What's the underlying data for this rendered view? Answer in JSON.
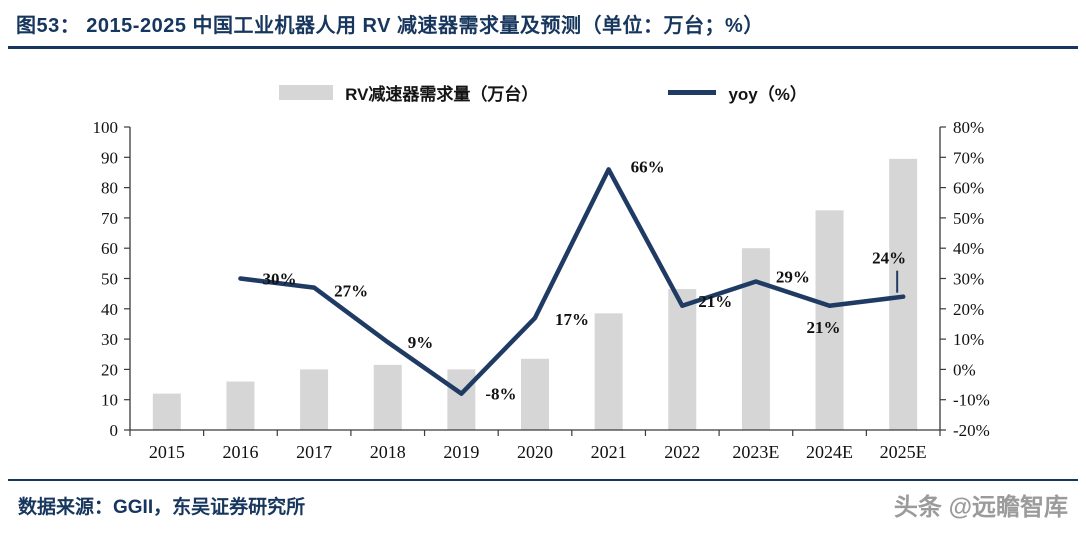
{
  "header": {
    "title": "图53：  2015-2025 中国工业机器人用 RV 减速器需求量及预测（单位：万台；%）"
  },
  "chart_data": {
    "type": "combo",
    "categories": [
      "2015",
      "2016",
      "2017",
      "2018",
      "2019",
      "2020",
      "2021",
      "2022",
      "2023E",
      "2024E",
      "2025E"
    ],
    "series": [
      {
        "name": "RV减速器需求量（万台）",
        "type": "bar",
        "axis": "left",
        "color": "#d6d6d6",
        "values": [
          12,
          16,
          20,
          21.5,
          20,
          23.5,
          38.5,
          46.5,
          60,
          72.5,
          89.5
        ]
      },
      {
        "name": "yoy（%）",
        "type": "line",
        "axis": "right",
        "color": "#1f3a63",
        "values": [
          null,
          30,
          27,
          9,
          -8,
          17,
          66,
          21,
          29,
          21,
          24
        ],
        "labels": [
          "",
          "30%",
          "27%",
          "9%",
          "-8%",
          "17%",
          "66%",
          "21%",
          "29%",
          "21%",
          "24%"
        ]
      }
    ],
    "left_axis": {
      "min": 0,
      "max": 100,
      "ticks": [
        "0",
        "10",
        "20",
        "30",
        "40",
        "50",
        "60",
        "70",
        "80",
        "90",
        "100"
      ]
    },
    "right_axis": {
      "min": -20,
      "max": 80,
      "ticks": [
        "-20%",
        "-10%",
        "0%",
        "10%",
        "20%",
        "30%",
        "40%",
        "50%",
        "60%",
        "70%",
        "80%"
      ]
    },
    "legend_position": "top",
    "grid": "off"
  },
  "footer": {
    "source": "数据来源：GGII，东吴证券研究所",
    "watermark": "头条 @远瞻智库"
  }
}
